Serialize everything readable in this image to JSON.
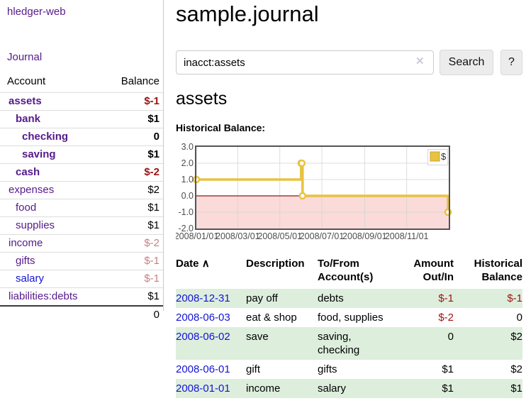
{
  "colors": {
    "link_purple": "#551a8b",
    "link_blue": "#1414d6",
    "negative_strong": "#9d1212",
    "negative_light": "#c98080",
    "row_green": "#ddeedd",
    "chart_gold": "#e8c240",
    "chart_negative_fill": "#fbdada",
    "chart_zero_line": "#8b1a1a"
  },
  "sidebar": {
    "brand": "hledger-web",
    "journal_link": "Journal",
    "accounts": {
      "header_account": "Account",
      "header_balance": "Balance",
      "rows": [
        {
          "name": "assets",
          "balance": "$-1"
        },
        {
          "name": "bank",
          "balance": "$1"
        },
        {
          "name": "checking",
          "balance": "0"
        },
        {
          "name": "saving",
          "balance": "$1"
        },
        {
          "name": "cash",
          "balance": "$-2"
        },
        {
          "name": "expenses",
          "balance": "$2"
        },
        {
          "name": "food",
          "balance": "$1"
        },
        {
          "name": "supplies",
          "balance": "$1"
        },
        {
          "name": "income",
          "balance": "$-2"
        },
        {
          "name": "gifts",
          "balance": "$-1"
        },
        {
          "name": "salary",
          "balance": "$-1"
        },
        {
          "name": "liabilities:debts",
          "balance": "$1"
        }
      ],
      "total": "0"
    }
  },
  "main": {
    "title": "sample.journal",
    "search": {
      "value": "inacct:assets",
      "clear_icon": "✕",
      "search_button": "Search",
      "help_button": "?"
    },
    "account_heading": "assets",
    "register": {
      "headers": {
        "date": "Date",
        "sort_icon": "∧",
        "description": "Description",
        "accounts": "To/From Account(s)",
        "amount": "Amount Out/In",
        "balance": "Historical Balance"
      },
      "rows": [
        {
          "date": "2008-12-31",
          "description": "pay off",
          "accounts": "debts",
          "amount": "$-1",
          "balance": "$-1"
        },
        {
          "date": "2008-06-03",
          "description": "eat & shop",
          "accounts": "food, supplies",
          "amount": "$-2",
          "balance": "0"
        },
        {
          "date": "2008-06-02",
          "description": "save",
          "accounts": "saving, checking",
          "amount": "0",
          "balance": "$2"
        },
        {
          "date": "2008-06-01",
          "description": "gift",
          "accounts": "gifts",
          "amount": "$1",
          "balance": "$2"
        },
        {
          "date": "2008-01-01",
          "description": "income",
          "accounts": "salary",
          "amount": "$1",
          "balance": "$1"
        }
      ]
    }
  },
  "chart_data": {
    "type": "line",
    "title": "Historical Balance:",
    "step": true,
    "series": [
      {
        "name": "$",
        "color": "#e8c240",
        "points": [
          {
            "date": "2008-01-01",
            "value": 1
          },
          {
            "date": "2008-06-01",
            "value": 2
          },
          {
            "date": "2008-06-02",
            "value": 2
          },
          {
            "date": "2008-06-03",
            "value": 0
          },
          {
            "date": "2008-12-31",
            "value": -1
          }
        ]
      }
    ],
    "x_range": [
      "2008-01-01",
      "2009-01-01"
    ],
    "x_tick_labels": [
      "2008/01/01",
      "2008/03/01",
      "2008/05/01",
      "2008/07/01",
      "2008/09/01",
      "2008/11/01"
    ],
    "y_tick_labels": [
      "3.0",
      "2.0",
      "1.0",
      "0.0",
      "-1.0",
      "-2.0"
    ],
    "y_ticks": [
      3,
      2,
      1,
      0,
      -1,
      -2
    ],
    "ylim": [
      -2,
      3
    ],
    "grid": true,
    "negative_region": {
      "from": 0,
      "to": -2
    },
    "legend": {
      "label": "$",
      "position": "top-right"
    }
  }
}
